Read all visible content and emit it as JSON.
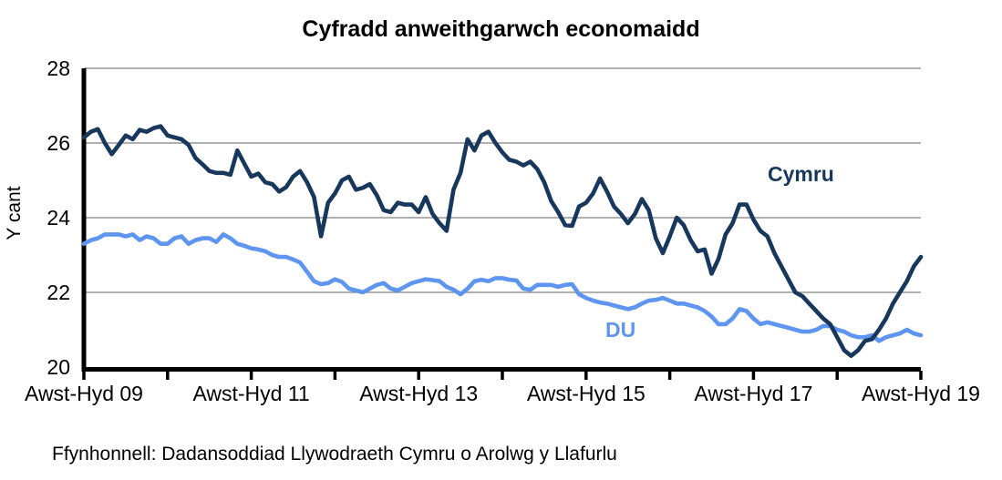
{
  "chart_data": {
    "type": "line",
    "title": "Cyfradd anweithgarwch economaidd",
    "ylabel": "Y cant",
    "ylim": [
      20,
      28
    ],
    "yticks": [
      20,
      22,
      24,
      26,
      28
    ],
    "grid": "horizontal",
    "x_axis_note": "monthly rolling three-month periods from Awst-Hyd 2009 to Awst-Hyd 2019, year ticks each year, labels every two years",
    "xtick_labels": [
      "Awst-Hyd 09",
      "Awst-Hyd 11",
      "Awst-Hyd 13",
      "Awst-Hyd 15",
      "Awst-Hyd 17",
      "Awst-Hyd 19"
    ],
    "colors": {
      "gridline": "#808080",
      "axis": "#000000",
      "cymru": "#17375D",
      "du": "#5E95F0"
    },
    "legend_position": "inline-labels",
    "series": [
      {
        "name": "Cymru",
        "color": "#17375D",
        "values": [
          26.15,
          26.3,
          26.37,
          26.0,
          25.7,
          25.95,
          26.2,
          26.1,
          26.35,
          26.3,
          26.4,
          26.45,
          26.2,
          26.15,
          26.1,
          25.95,
          25.6,
          25.43,
          25.25,
          25.2,
          25.2,
          25.15,
          25.8,
          25.45,
          25.1,
          25.18,
          24.95,
          24.9,
          24.7,
          24.82,
          25.1,
          25.25,
          24.95,
          24.55,
          23.5,
          24.4,
          24.65,
          25.0,
          25.1,
          24.75,
          24.8,
          24.9,
          24.6,
          24.2,
          24.15,
          24.4,
          24.35,
          24.35,
          24.15,
          24.55,
          24.1,
          23.85,
          23.65,
          24.75,
          25.2,
          26.1,
          25.8,
          26.2,
          26.3,
          26.0,
          25.75,
          25.55,
          25.5,
          25.4,
          25.5,
          25.3,
          24.95,
          24.45,
          24.15,
          23.8,
          23.78,
          24.3,
          24.4,
          24.65,
          25.05,
          24.7,
          24.3,
          24.1,
          23.85,
          24.1,
          24.5,
          24.2,
          23.45,
          23.05,
          23.5,
          24.0,
          23.8,
          23.4,
          23.1,
          23.15,
          22.5,
          22.9,
          23.55,
          23.85,
          24.35,
          24.35,
          23.95,
          23.65,
          23.5,
          23.05,
          22.7,
          22.35,
          22.0,
          21.9,
          21.7,
          21.5,
          21.3,
          21.15,
          20.8,
          20.45,
          20.3,
          20.45,
          20.7,
          20.75,
          21.0,
          21.3,
          21.7,
          22.0,
          22.3,
          22.7,
          22.95
        ]
      },
      {
        "name": "DU",
        "color": "#5E95F0",
        "values": [
          23.3,
          23.4,
          23.45,
          23.55,
          23.55,
          23.55,
          23.5,
          23.55,
          23.4,
          23.5,
          23.45,
          23.3,
          23.3,
          23.45,
          23.5,
          23.3,
          23.4,
          23.45,
          23.45,
          23.35,
          23.55,
          23.45,
          23.3,
          23.25,
          23.18,
          23.15,
          23.1,
          23.0,
          22.95,
          22.95,
          22.88,
          22.8,
          22.55,
          22.3,
          22.22,
          22.25,
          22.35,
          22.28,
          22.1,
          22.05,
          22.0,
          22.1,
          22.2,
          22.25,
          22.1,
          22.05,
          22.15,
          22.25,
          22.3,
          22.35,
          22.33,
          22.3,
          22.15,
          22.07,
          21.95,
          22.1,
          22.3,
          22.34,
          22.3,
          22.38,
          22.38,
          22.34,
          22.32,
          22.1,
          22.07,
          22.2,
          22.2,
          22.2,
          22.15,
          22.2,
          22.22,
          21.95,
          21.85,
          21.78,
          21.73,
          21.7,
          21.65,
          21.6,
          21.55,
          21.6,
          21.7,
          21.78,
          21.8,
          21.85,
          21.78,
          21.7,
          21.7,
          21.65,
          21.6,
          21.5,
          21.35,
          21.15,
          21.15,
          21.3,
          21.55,
          21.5,
          21.3,
          21.15,
          21.2,
          21.15,
          21.1,
          21.05,
          21.0,
          20.95,
          20.95,
          21.0,
          21.1,
          21.1,
          21.0,
          20.95,
          20.85,
          20.8,
          20.8,
          20.85,
          20.7,
          20.8,
          20.85,
          20.9,
          21.0,
          20.9,
          20.85
        ]
      }
    ],
    "source": "Ffynhonnell: Dadansoddiad Llywodraeth Cymru o Arolwg y Llafurlu"
  }
}
